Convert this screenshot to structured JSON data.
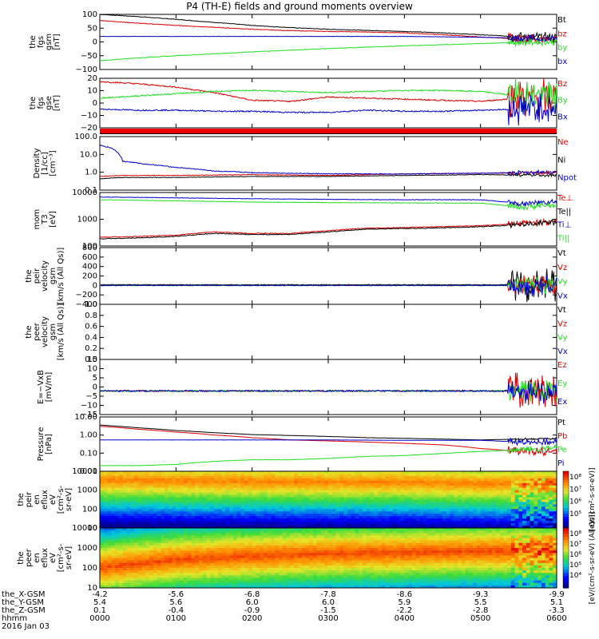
{
  "title": "P4 (TH-E) fields and ground moments overview",
  "colors": {
    "black": "#000000",
    "red": "#dd0000",
    "green": "#22dd22",
    "blue": "#0000cc"
  },
  "x_axis": {
    "ticks": [
      "0000",
      "0100",
      "0200",
      "0300",
      "0400",
      "0500",
      "0600"
    ],
    "footer_rows": [
      {
        "label": "the_X-GSM",
        "values": [
          "-4.2",
          "-5.6",
          "-6.8",
          "-7.8",
          "-8.6",
          "-9.3",
          "-9.9"
        ]
      },
      {
        "label": "the_Y-GSM",
        "values": [
          "5.4",
          "5.6",
          "6.0",
          "6.0",
          "5.9",
          "5.5",
          "5.1"
        ]
      },
      {
        "label": "the_Z-GSM",
        "values": [
          "0.1",
          "-0.4",
          "-0.9",
          "-1.5",
          "-2.2",
          "-2.8",
          "-3.3"
        ]
      },
      {
        "label": "hhmm",
        "values": [
          "0000",
          "0100",
          "0200",
          "0300",
          "0400",
          "0500",
          "0600"
        ]
      }
    ],
    "date": "2016 Jan 03"
  },
  "chart_data": [
    {
      "type": "line",
      "ylabel": [
        "the",
        "fgs",
        "gsm",
        "[nT]"
      ],
      "ylim": [
        -100,
        100
      ],
      "yticks": [
        "100",
        "50",
        "0",
        "−50",
        "−100"
      ],
      "series": [
        {
          "name": "Bt",
          "color": "black",
          "x": [
            0,
            0.5,
            1,
            1.5,
            2,
            2.5,
            3,
            3.5,
            4,
            4.5,
            5,
            5.3,
            5.5,
            5.7,
            5.9,
            6
          ],
          "values": [
            100,
            92,
            82,
            71,
            60,
            52,
            46,
            42,
            38,
            33,
            26,
            22,
            20,
            18,
            17,
            16
          ],
          "noise": 1,
          "burst": 14
        },
        {
          "name": "bz",
          "color": "red",
          "x": [
            0,
            0.5,
            1,
            1.5,
            2,
            2.5,
            3,
            3.5,
            4,
            4.5,
            5,
            5.3,
            5.5,
            5.7,
            5.9,
            6
          ],
          "values": [
            78,
            68,
            60,
            53,
            46,
            41,
            38,
            36,
            33,
            26,
            18,
            14,
            12,
            10,
            9,
            8
          ],
          "noise": 1,
          "burst": 14
        },
        {
          "name": "by",
          "color": "green",
          "x": [
            0,
            0.5,
            1,
            1.5,
            2,
            2.5,
            3,
            3.5,
            4,
            4.5,
            5,
            5.3,
            5.5,
            5.7,
            5.9,
            6
          ],
          "values": [
            -68,
            -58,
            -50,
            -43,
            -36,
            -30,
            -24,
            -19,
            -14,
            -10,
            -6,
            -3,
            -2,
            -1,
            0,
            0
          ],
          "noise": 1,
          "burst": 10
        },
        {
          "name": "bx",
          "color": "blue",
          "x": [
            0,
            1,
            2,
            3,
            4,
            5,
            5.5,
            6
          ],
          "values": [
            20,
            20,
            20,
            20,
            20,
            17,
            14,
            12
          ],
          "noise": 0.5,
          "burst": 10
        }
      ]
    },
    {
      "type": "line",
      "ylabel": [
        "the",
        "fgs",
        "gse",
        "[nT]"
      ],
      "ylim": [
        -25,
        20
      ],
      "yticks": [
        "20",
        "10",
        "0",
        "−10",
        "−20"
      ],
      "series": [
        {
          "name": "Bz",
          "color": "red",
          "x": [
            0,
            0.5,
            1,
            1.5,
            2,
            2.5,
            3,
            3.5,
            4,
            4.5,
            5,
            5.5,
            6
          ],
          "values": [
            17,
            15,
            12,
            7,
            0,
            -1,
            3,
            2,
            1,
            0,
            -1,
            2,
            2
          ],
          "noise": 0.6,
          "burst": 14
        },
        {
          "name": "By",
          "color": "green",
          "x": [
            0,
            0.5,
            1,
            1.5,
            2,
            2.5,
            3,
            3.5,
            4,
            4.5,
            5,
            5.5,
            6
          ],
          "values": [
            2,
            4,
            6,
            8,
            9,
            8,
            7,
            8,
            9,
            9,
            8,
            4,
            4
          ],
          "noise": 0.6,
          "burst": 12
        },
        {
          "name": "Bx",
          "color": "blue",
          "x": [
            0,
            0.5,
            1,
            1.5,
            2,
            2.5,
            3,
            3.5,
            4,
            4.5,
            5,
            5.5,
            6
          ],
          "values": [
            -8,
            -9,
            -9,
            -10,
            -10,
            -11,
            -11,
            -9,
            -10,
            -10,
            -9,
            -8,
            -8
          ],
          "noise": 0.6,
          "burst": 12
        }
      ]
    },
    {
      "type": "line",
      "log": true,
      "ylabel": [
        "Density",
        "[1/cc]",
        "[cm⁻³]"
      ],
      "ylim": [
        0.1,
        200
      ],
      "yticks": [
        "100.0",
        "10.0",
        "1.0",
        "0.1"
      ],
      "series": [
        {
          "name": "Ne",
          "color": "red",
          "x": [
            0,
            0.3,
            1,
            2,
            3,
            4,
            5,
            6
          ],
          "values": [
            0.7,
            0.8,
            0.8,
            0.9,
            0.8,
            1.0,
            1.1,
            1.2
          ],
          "noise": 0.03,
          "burst": 0.15
        },
        {
          "name": "Ni",
          "color": "black",
          "x": [
            0,
            0.3,
            1,
            2,
            3,
            4,
            5,
            6
          ],
          "values": [
            0.5,
            0.6,
            0.6,
            0.7,
            0.7,
            0.8,
            0.9,
            0.8
          ],
          "noise": 0.03,
          "burst": 0.15
        },
        {
          "name": "Npot",
          "color": "blue",
          "x": [
            0,
            0.05,
            0.1,
            0.15,
            0.3,
            0.6,
            1,
            1.5,
            2,
            3,
            4,
            5,
            6
          ],
          "values": [
            60,
            50,
            45,
            40,
            6,
            4,
            2.5,
            1.5,
            1.2,
            1.0,
            1.0,
            1.1,
            1.3
          ],
          "noise": 0.05,
          "burst": 0.2
        }
      ]
    },
    {
      "type": "line",
      "log": true,
      "ylabel": [
        "mom",
        "T3",
        "[eV]"
      ],
      "ylim": [
        60,
        10000
      ],
      "yticks": [
        "10000",
        "1000",
        "100"
      ],
      "series": [
        {
          "name": "Te⊥",
          "color": "red",
          "x": [
            0,
            0.5,
            1,
            1.5,
            2,
            2.5,
            3,
            3.5,
            4,
            4.5,
            5,
            5.5,
            6
          ],
          "values": [
            140,
            150,
            170,
            230,
            200,
            200,
            260,
            330,
            350,
            380,
            420,
            500,
            650
          ],
          "noise": 0.03,
          "burst": 0.2
        },
        {
          "name": "Te||",
          "color": "black",
          "x": [
            0,
            0.5,
            1,
            1.5,
            2,
            2.5,
            3,
            3.5,
            4,
            4.5,
            5,
            5.5,
            6
          ],
          "values": [
            120,
            130,
            150,
            200,
            180,
            180,
            230,
            300,
            320,
            340,
            380,
            450,
            600
          ],
          "noise": 0.03,
          "burst": 0.2
        },
        {
          "name": "Ti⊥",
          "color": "blue",
          "x": [
            0,
            1,
            2,
            3,
            4,
            5,
            5.5,
            6
          ],
          "values": [
            6500,
            6000,
            5500,
            5200,
            5000,
            5000,
            3500,
            4000
          ],
          "noise": 0.02,
          "burst": 0.2
        },
        {
          "name": "Ti||",
          "color": "green",
          "x": [
            0,
            1,
            2,
            3,
            4,
            5,
            5.5,
            6
          ],
          "values": [
            5000,
            4500,
            4000,
            3800,
            3700,
            3600,
            2500,
            3000
          ],
          "noise": 0.02,
          "burst": 0.2
        }
      ]
    },
    {
      "type": "line",
      "ylabel": [
        "the",
        "peir",
        "velocity",
        "gsm",
        "[km/s (All Qs)]"
      ],
      "ylim": [
        -400,
        800
      ],
      "yticks": [
        "800",
        "600",
        "400",
        "200",
        "0",
        "−200",
        "−400"
      ],
      "series": [
        {
          "name": "Vt",
          "color": "black",
          "x": [
            0,
            6
          ],
          "values": [
            15,
            15
          ],
          "noise": 6,
          "burst": 280
        },
        {
          "name": "Vz",
          "color": "red",
          "x": [
            0,
            6
          ],
          "values": [
            0,
            0
          ],
          "noise": 8,
          "burst": 160
        },
        {
          "name": "Vy",
          "color": "green",
          "x": [
            0,
            6
          ],
          "values": [
            0,
            0
          ],
          "noise": 8,
          "burst": 160
        },
        {
          "name": "Vx",
          "color": "blue",
          "x": [
            0,
            6
          ],
          "values": [
            0,
            0
          ],
          "noise": 8,
          "burst": 160
        }
      ]
    },
    {
      "type": "line",
      "empty": true,
      "ylabel": [
        "the",
        "peer",
        "velocity",
        "gsm",
        "[km/s (All Qs)]"
      ],
      "ylim": [
        0,
        1
      ],
      "yticks": [
        "1.0",
        "0.8",
        "0.6",
        "0.4",
        "0.2",
        "0.0"
      ],
      "series": [
        {
          "name": "Vt",
          "color": "black"
        },
        {
          "name": "Vz",
          "color": "red"
        },
        {
          "name": "Vy",
          "color": "green"
        },
        {
          "name": "Vx",
          "color": "blue"
        }
      ]
    },
    {
      "type": "line",
      "ylabel": [
        "E=−VxB",
        "[mV/m]"
      ],
      "ylim": [
        -15,
        20
      ],
      "yticks": [
        "15",
        "10",
        "5",
        "0",
        "−5",
        "−10",
        "−15"
      ],
      "series": [
        {
          "name": "Ez",
          "color": "red",
          "x": [
            0,
            6
          ],
          "values": [
            0,
            0
          ],
          "noise": 0.5,
          "burst": 9
        },
        {
          "name": "Ey",
          "color": "green",
          "x": [
            0,
            6
          ],
          "values": [
            0,
            0
          ],
          "noise": 0.5,
          "burst": 6
        },
        {
          "name": "Ex",
          "color": "blue",
          "x": [
            0,
            6
          ],
          "values": [
            0,
            0
          ],
          "noise": 0.5,
          "burst": 6
        }
      ]
    },
    {
      "type": "line",
      "log": true,
      "ylabel": [
        "Pressure",
        "[nPa]"
      ],
      "ylim": [
        0.005,
        10
      ],
      "yticks": [
        "10.00",
        "1.00",
        "0.10",
        "0.01"
      ],
      "series": [
        {
          "name": "Pt",
          "color": "black",
          "x": [
            0,
            0.5,
            1,
            1.5,
            2,
            2.5,
            3,
            3.5,
            4,
            4.5,
            5,
            5.5,
            6
          ],
          "values": [
            3.2,
            2.2,
            1.5,
            1.1,
            0.85,
            0.75,
            0.65,
            0.55,
            0.5,
            0.45,
            0.4,
            0.45,
            0.5
          ],
          "noise": 0.01,
          "burst": 0.1
        },
        {
          "name": "Pb",
          "color": "red",
          "x": [
            0,
            0.5,
            1,
            1.5,
            2,
            2.5,
            3,
            3.5,
            4,
            4.5,
            5,
            5.5,
            6
          ],
          "values": [
            2.7,
            1.8,
            1.2,
            0.8,
            0.55,
            0.4,
            0.35,
            0.3,
            0.25,
            0.2,
            0.12,
            0.08,
            0.08
          ],
          "noise": 0.01,
          "burst": 0.4
        },
        {
          "name": "Pe",
          "color": "green",
          "x": [
            0,
            0.5,
            1,
            1.5,
            2,
            2.5,
            3,
            3.5,
            4,
            4.5,
            5,
            5.5,
            6
          ],
          "values": [
            0.011,
            0.011,
            0.013,
            0.02,
            0.025,
            0.025,
            0.03,
            0.04,
            0.045,
            0.06,
            0.08,
            0.1,
            0.13
          ],
          "noise": 0.02,
          "burst": 0.3
        },
        {
          "name": "Pi",
          "color": "blue",
          "x": [
            0,
            1,
            2,
            3,
            4,
            5,
            5.5,
            6
          ],
          "values": [
            0.4,
            0.4,
            0.4,
            0.4,
            0.38,
            0.38,
            0.3,
            0.3
          ],
          "noise": 0.01,
          "burst": 0.3
        }
      ]
    },
    {
      "type": "heatmap",
      "ylabel": [
        "the",
        "peir",
        "en",
        "eflux",
        "eV",
        "[cm²-s-",
        "sr-eV]"
      ],
      "yticks": [
        "10000",
        "1000",
        "100",
        "10"
      ],
      "ylim": [
        6,
        25000
      ],
      "colorbar_label": "[eV/(cm²-s-sr-eV)]",
      "colorbar_ticks": [
        "10⁸",
        "10⁷",
        "10⁶",
        "10⁵"
      ],
      "peak_energy": [
        7000,
        6000,
        5500,
        5000,
        5000,
        4000
      ],
      "peak_level": 0.82
    },
    {
      "type": "heatmap",
      "ylabel": [
        "the",
        "peer",
        "en",
        "eflux",
        "eV",
        "[cm²-s-",
        "sr-eV]"
      ],
      "yticks": [
        "10000",
        "1000",
        "100",
        "10"
      ],
      "ylim": [
        6,
        25000
      ],
      "colorbar_label": "[eV/(cm²-s-sr-eV) (All Qs)]",
      "colorbar_ticks": [
        "10⁸",
        "10⁷",
        "10⁶",
        "10⁵",
        "10⁴"
      ],
      "peak_energy": [
        100,
        300,
        500,
        700,
        800,
        1000
      ],
      "peak_level": 0.9
    }
  ]
}
